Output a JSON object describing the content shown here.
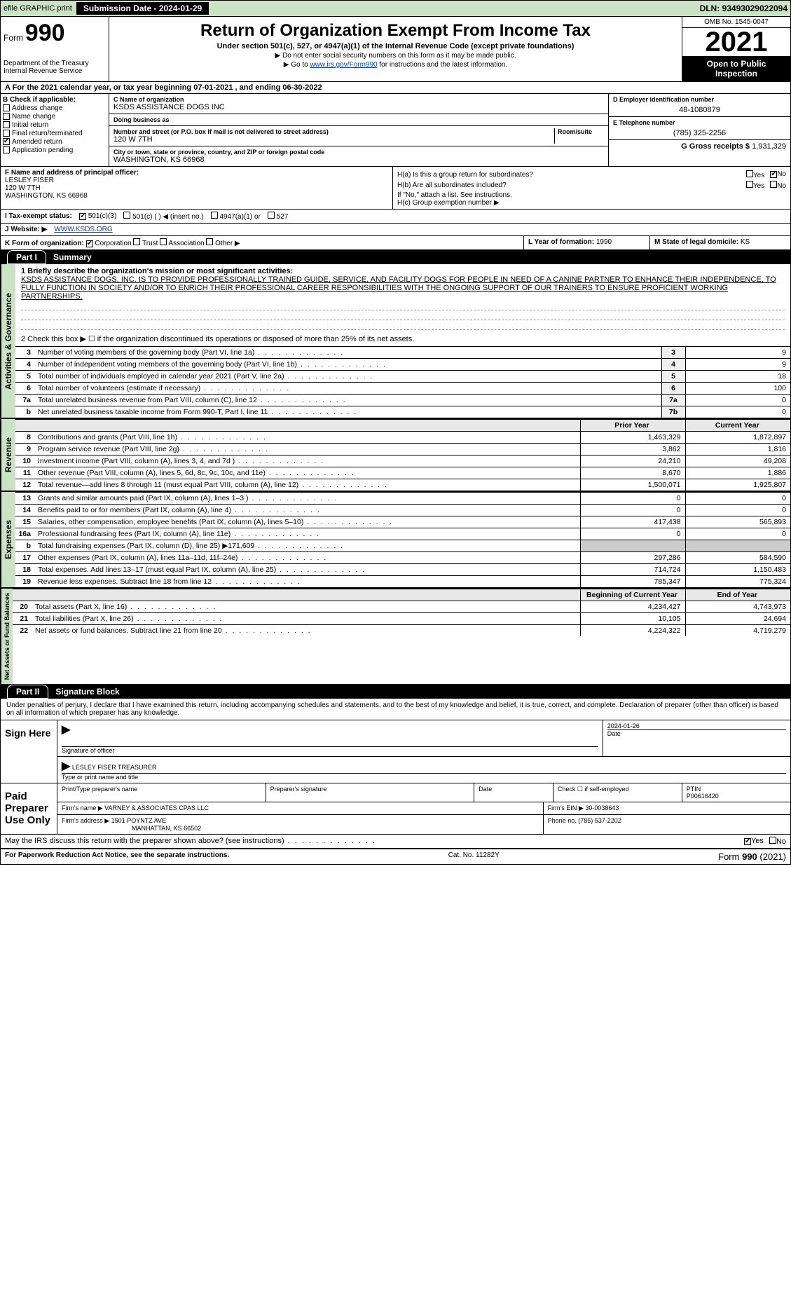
{
  "topbar": {
    "efile": "efile GRAPHIC print",
    "submission_label": "Submission Date - 2024-01-29",
    "dln": "DLN: 93493029022094"
  },
  "header": {
    "form_prefix": "Form",
    "form_no": "990",
    "dept1": "Department of the Treasury",
    "dept2": "Internal Revenue Service",
    "title": "Return of Organization Exempt From Income Tax",
    "subtitle": "Under section 501(c), 527, or 4947(a)(1) of the Internal Revenue Code (except private foundations)",
    "note1": "▶ Do not enter social security numbers on this form as it may be made public.",
    "note2_pre": "▶ Go to ",
    "note2_link": "www.irs.gov/Form990",
    "note2_post": " for instructions and the latest information.",
    "omb": "OMB No. 1545-0047",
    "year": "2021",
    "open_pub": "Open to Public Inspection"
  },
  "period": {
    "text": "For the 2021 calendar year, or tax year beginning 07-01-2021    , and ending 06-30-2022"
  },
  "boxB": {
    "label": "B Check if applicable:",
    "items": [
      {
        "label": "Address change",
        "checked": false
      },
      {
        "label": "Name change",
        "checked": false
      },
      {
        "label": "Initial return",
        "checked": false
      },
      {
        "label": "Final return/terminated",
        "checked": false
      },
      {
        "label": "Amended return",
        "checked": true
      },
      {
        "label": "Application pending",
        "checked": false
      }
    ]
  },
  "boxC": {
    "name_label": "C Name of organization",
    "name": "KSDS ASSISTANCE DOGS INC",
    "dba_label": "Doing business as",
    "dba": "",
    "addr_label": "Number and street (or P.O. box if mail is not delivered to street address)",
    "room_label": "Room/suite",
    "addr": "120 W 7TH",
    "city_label": "City or town, state or province, country, and ZIP or foreign postal code",
    "city": "WASHINGTON, KS  66968"
  },
  "boxD": {
    "label": "D Employer identification number",
    "value": "48-1080879"
  },
  "boxE": {
    "label": "E Telephone number",
    "value": "(785) 325-2256"
  },
  "boxG": {
    "label": "G Gross receipts $",
    "value": "1,931,329"
  },
  "boxF": {
    "label": "F Name and address of principal officer:",
    "name": "LESLEY FISER",
    "addr1": "120 W 7TH",
    "addr2": "WASHINGTON, KS  66968"
  },
  "boxH": {
    "ha": "H(a)  Is this a group return for subordinates?",
    "hb": "H(b)  Are all subordinates included?",
    "hb_note": "If \"No,\" attach a list. See instructions.",
    "hc": "H(c)  Group exemption number ▶",
    "yes": "Yes",
    "no": "No"
  },
  "rowI": {
    "label": "I  Tax-exempt status:",
    "opt1": "501(c)(3)",
    "opt2": "501(c) (  ) ◀ (insert no.)",
    "opt3": "4947(a)(1) or",
    "opt4": "527"
  },
  "rowJ": {
    "label": "J  Website: ▶",
    "value": "WWW.KSDS.ORG"
  },
  "rowK": {
    "label": "K Form of organization:",
    "opts": [
      "Corporation",
      "Trust",
      "Association",
      "Other ▶"
    ]
  },
  "rowL": {
    "label": "L Year of formation:",
    "value": "1990"
  },
  "rowM": {
    "label": "M State of legal domicile:",
    "value": "KS"
  },
  "part1": {
    "tag": "Part I",
    "title": "Summary",
    "line1_label": "1  Briefly describe the organization's mission or most significant activities:",
    "mission": "KSDS ASSISTANCE DOGS, INC. IS TO PROVIDE PROFESSIONALLY TRAINED GUIDE, SERVICE, AND FACILITY DOGS FOR PEOPLE IN NEED OF A CANINE PARTNER TO ENHANCE THEIR INDEPENDENCE, TO FULLY FUNCTION IN SOCIETY AND/OR TO ENRICH THEIR PROFESSIONAL CAREER RESPONSIBILITIES WITH THE ONGOING SUPPORT OF OUR TRAINERS TO ENSURE PROFICIENT WORKING PARTNERSHIPS.",
    "line2": "2   Check this box ▶ ☐  if the organization discontinued its operations or disposed of more than 25% of its net assets.",
    "gov_label": "Activities & Governance",
    "rev_label": "Revenue",
    "exp_label": "Expenses",
    "net_label": "Net Assets or Fund Balances",
    "lines_gov": [
      {
        "n": "3",
        "t": "Number of voting members of the governing body (Part VI, line 1a)",
        "c": "3",
        "v": "9"
      },
      {
        "n": "4",
        "t": "Number of independent voting members of the governing body (Part VI, line 1b)",
        "c": "4",
        "v": "9"
      },
      {
        "n": "5",
        "t": "Total number of individuals employed in calendar year 2021 (Part V, line 2a)",
        "c": "5",
        "v": "18"
      },
      {
        "n": "6",
        "t": "Total number of volunteers (estimate if necessary)",
        "c": "6",
        "v": "100"
      },
      {
        "n": "7a",
        "t": "Total unrelated business revenue from Part VIII, column (C), line 12",
        "c": "7a",
        "v": "0"
      },
      {
        "n": "b",
        "t": "Net unrelated business taxable income from Form 990-T, Part I, line 11",
        "c": "7b",
        "v": "0"
      }
    ],
    "col_prior": "Prior Year",
    "col_current": "Current Year",
    "lines_rev": [
      {
        "n": "8",
        "t": "Contributions and grants (Part VIII, line 1h)",
        "p": "1,463,329",
        "c": "1,872,897"
      },
      {
        "n": "9",
        "t": "Program service revenue (Part VIII, line 2g)",
        "p": "3,862",
        "c": "1,816"
      },
      {
        "n": "10",
        "t": "Investment income (Part VIII, column (A), lines 3, 4, and 7d )",
        "p": "24,210",
        "c": "49,208"
      },
      {
        "n": "11",
        "t": "Other revenue (Part VIII, column (A), lines 5, 6d, 8c, 9c, 10c, and 11e)",
        "p": "8,670",
        "c": "1,886"
      },
      {
        "n": "12",
        "t": "Total revenue—add lines 8 through 11 (must equal Part VIII, column (A), line 12)",
        "p": "1,500,071",
        "c": "1,925,807"
      }
    ],
    "lines_exp": [
      {
        "n": "13",
        "t": "Grants and similar amounts paid (Part IX, column (A), lines 1–3 )",
        "p": "0",
        "c": "0"
      },
      {
        "n": "14",
        "t": "Benefits paid to or for members (Part IX, column (A), line 4)",
        "p": "0",
        "c": "0"
      },
      {
        "n": "15",
        "t": "Salaries, other compensation, employee benefits (Part IX, column (A), lines 5–10)",
        "p": "417,438",
        "c": "565,893"
      },
      {
        "n": "16a",
        "t": "Professional fundraising fees (Part IX, column (A), line 11e)",
        "p": "0",
        "c": "0"
      },
      {
        "n": "b",
        "t": "Total fundraising expenses (Part IX, column (D), line 25) ▶171,609",
        "p": "",
        "c": ""
      },
      {
        "n": "17",
        "t": "Other expenses (Part IX, column (A), lines 11a–11d, 11f–24e)",
        "p": "297,286",
        "c": "584,590"
      },
      {
        "n": "18",
        "t": "Total expenses. Add lines 13–17 (must equal Part IX, column (A), line 25)",
        "p": "714,724",
        "c": "1,150,483"
      },
      {
        "n": "19",
        "t": "Revenue less expenses. Subtract line 18 from line 12",
        "p": "785,347",
        "c": "775,324"
      }
    ],
    "col_begin": "Beginning of Current Year",
    "col_end": "End of Year",
    "lines_net": [
      {
        "n": "20",
        "t": "Total assets (Part X, line 16)",
        "p": "4,234,427",
        "c": "4,743,973"
      },
      {
        "n": "21",
        "t": "Total liabilities (Part X, line 26)",
        "p": "10,105",
        "c": "24,694"
      },
      {
        "n": "22",
        "t": "Net assets or fund balances. Subtract line 21 from line 20",
        "p": "4,224,322",
        "c": "4,719,279"
      }
    ]
  },
  "part2": {
    "tag": "Part II",
    "title": "Signature Block",
    "intro": "Under penalties of perjury, I declare that I have examined this return, including accompanying schedules and statements, and to the best of my knowledge and belief, it is true, correct, and complete. Declaration of preparer (other than officer) is based on all information of which preparer has any knowledge.",
    "sign_here": "Sign Here",
    "sig_officer": "Signature of officer",
    "sig_date": "Date",
    "sig_date_val": "2024-01-26",
    "officer_name": "LESLEY FISER  TREASURER",
    "type_name": "Type or print name and title",
    "paid": "Paid Preparer Use Only",
    "print_name": "Print/Type preparer's name",
    "prep_sig": "Preparer's signature",
    "date": "Date",
    "check_self": "Check ☐ if self-employed",
    "ptin_label": "PTIN",
    "ptin": "P00616420",
    "firm_name_label": "Firm's name    ▶",
    "firm_name": "VARNEY & ASSOCIATES CPAS LLC",
    "firm_ein_label": "Firm's EIN ▶",
    "firm_ein": "30-0038643",
    "firm_addr_label": "Firm's address ▶",
    "firm_addr1": "1501 POYNTZ AVE",
    "firm_addr2": "MANHATTAN, KS  66502",
    "phone_label": "Phone no.",
    "phone": "(785) 537-2202",
    "discuss": "May the IRS discuss this return with the preparer shown above? (see instructions)",
    "yes": "Yes",
    "no": "No"
  },
  "footer": {
    "pra": "For Paperwork Reduction Act Notice, see the separate instructions.",
    "cat": "Cat. No. 11282Y",
    "form": "Form 990 (2021)"
  }
}
